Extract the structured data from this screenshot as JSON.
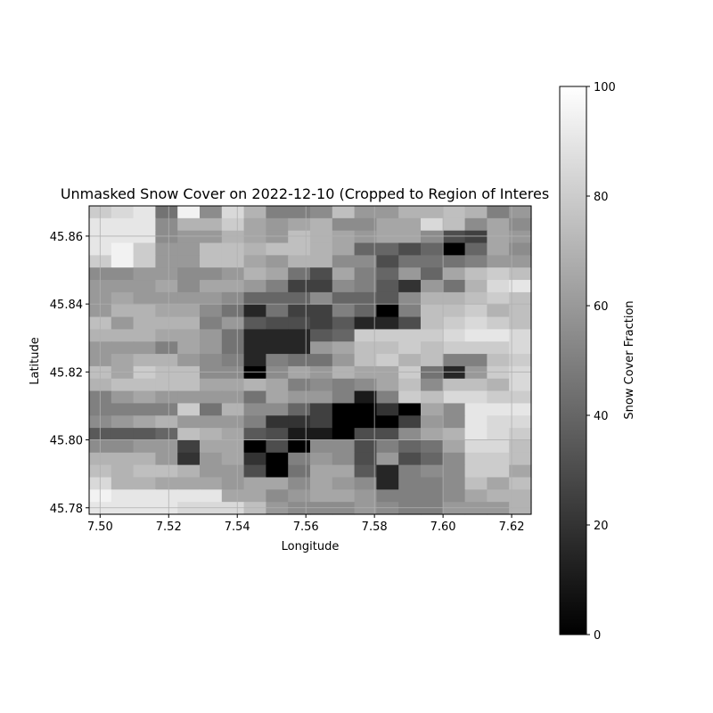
{
  "chart_data": {
    "type": "heatmap",
    "title": "Unmasked Snow Cover on 2022-12-10 (Cropped to Region of Interes",
    "xlabel": "Longitude",
    "ylabel": "Latitude",
    "colorbar_label": "Snow Cover Fraction",
    "colormap": "gray",
    "color_low": "#000000",
    "color_high": "#ffffff",
    "grid": true,
    "xlim": [
      7.4968,
      7.6257
    ],
    "ylim": [
      45.7781,
      45.8689
    ],
    "x_ticks": [
      7.5,
      7.52,
      7.54,
      7.56,
      7.58,
      7.6,
      7.62
    ],
    "x_tick_labels": [
      "7.50",
      "7.52",
      "7.54",
      "7.56",
      "7.58",
      "7.60",
      "7.62"
    ],
    "y_ticks": [
      45.78,
      45.8,
      45.82,
      45.84,
      45.86
    ],
    "y_tick_labels": [
      "45.78",
      "45.80",
      "45.82",
      "45.84",
      "45.86"
    ],
    "colorbar_range": [
      0,
      100
    ],
    "colorbar_ticks": [
      0,
      20,
      40,
      60,
      80,
      100
    ],
    "colorbar_tick_labels": [
      "0",
      "20",
      "40",
      "60",
      "80",
      "100"
    ],
    "rows_top_to_bottom": [
      [
        80,
        85,
        90,
        45,
        95,
        55,
        85,
        70,
        50,
        50,
        55,
        75,
        60,
        60,
        70,
        70,
        75,
        70,
        50,
        60
      ],
      [
        90,
        90,
        90,
        55,
        70,
        70,
        80,
        65,
        60,
        65,
        70,
        55,
        55,
        65,
        65,
        85,
        75,
        55,
        65,
        55
      ],
      [
        90,
        90,
        90,
        55,
        60,
        60,
        70,
        65,
        60,
        75,
        70,
        65,
        60,
        65,
        65,
        55,
        30,
        25,
        65,
        60
      ],
      [
        90,
        95,
        80,
        60,
        60,
        75,
        75,
        70,
        75,
        75,
        70,
        65,
        40,
        40,
        30,
        40,
        0,
        40,
        65,
        55
      ],
      [
        80,
        95,
        80,
        60,
        60,
        75,
        75,
        65,
        60,
        70,
        70,
        55,
        55,
        30,
        45,
        45,
        45,
        50,
        60,
        60
      ],
      [
        55,
        55,
        60,
        60,
        55,
        55,
        60,
        70,
        65,
        45,
        30,
        65,
        50,
        40,
        60,
        40,
        65,
        75,
        80,
        75
      ],
      [
        60,
        60,
        60,
        65,
        55,
        65,
        65,
        60,
        50,
        25,
        25,
        55,
        50,
        35,
        20,
        60,
        45,
        70,
        85,
        90
      ],
      [
        60,
        65,
        60,
        60,
        60,
        60,
        55,
        40,
        40,
        40,
        55,
        40,
        40,
        35,
        55,
        70,
        70,
        75,
        80,
        75
      ],
      [
        60,
        70,
        70,
        65,
        65,
        55,
        45,
        15,
        45,
        25,
        25,
        50,
        40,
        0,
        50,
        75,
        75,
        80,
        70,
        75
      ],
      [
        75,
        60,
        70,
        70,
        70,
        50,
        60,
        35,
        30,
        30,
        25,
        35,
        15,
        15,
        30,
        75,
        80,
        85,
        80,
        75
      ],
      [
        70,
        70,
        70,
        65,
        65,
        60,
        45,
        15,
        15,
        15,
        35,
        40,
        80,
        80,
        80,
        80,
        85,
        90,
        90,
        85
      ],
      [
        60,
        60,
        60,
        50,
        65,
        60,
        45,
        15,
        15,
        15,
        60,
        65,
        75,
        75,
        80,
        75,
        80,
        80,
        80,
        85
      ],
      [
        60,
        65,
        70,
        70,
        60,
        55,
        50,
        15,
        50,
        45,
        45,
        60,
        75,
        80,
        70,
        75,
        50,
        50,
        75,
        80
      ],
      [
        75,
        65,
        80,
        75,
        75,
        55,
        55,
        0,
        55,
        65,
        60,
        70,
        65,
        65,
        80,
        45,
        15,
        60,
        80,
        85
      ],
      [
        70,
        75,
        75,
        75,
        75,
        65,
        65,
        70,
        65,
        50,
        55,
        50,
        55,
        65,
        75,
        55,
        75,
        75,
        70,
        85
      ],
      [
        50,
        60,
        65,
        60,
        60,
        60,
        60,
        45,
        65,
        60,
        60,
        50,
        10,
        50,
        80,
        75,
        85,
        85,
        80,
        80
      ],
      [
        50,
        50,
        50,
        50,
        80,
        45,
        70,
        55,
        55,
        40,
        25,
        0,
        0,
        20,
        0,
        65,
        55,
        90,
        90,
        90
      ],
      [
        55,
        60,
        65,
        70,
        60,
        60,
        60,
        50,
        20,
        20,
        25,
        0,
        0,
        0,
        25,
        60,
        55,
        90,
        85,
        85
      ],
      [
        35,
        35,
        35,
        40,
        75,
        70,
        65,
        35,
        30,
        10,
        10,
        0,
        30,
        30,
        55,
        65,
        70,
        90,
        85,
        80
      ],
      [
        55,
        55,
        60,
        60,
        25,
        65,
        65,
        0,
        30,
        0,
        55,
        55,
        30,
        50,
        40,
        45,
        65,
        85,
        85,
        75
      ],
      [
        70,
        70,
        70,
        60,
        20,
        60,
        65,
        20,
        0,
        50,
        60,
        55,
        30,
        60,
        30,
        40,
        55,
        80,
        80,
        75
      ],
      [
        75,
        70,
        75,
        75,
        70,
        60,
        60,
        30,
        0,
        45,
        65,
        65,
        35,
        15,
        50,
        55,
        55,
        80,
        80,
        65
      ],
      [
        85,
        70,
        70,
        65,
        65,
        65,
        60,
        65,
        65,
        55,
        65,
        60,
        55,
        15,
        50,
        50,
        55,
        75,
        65,
        75
      ],
      [
        95,
        90,
        90,
        90,
        90,
        90,
        65,
        65,
        55,
        60,
        65,
        65,
        60,
        50,
        50,
        50,
        55,
        65,
        70,
        70
      ],
      [
        90,
        90,
        90,
        90,
        85,
        85,
        85,
        75,
        60,
        55,
        55,
        55,
        60,
        55,
        50,
        50,
        60,
        60,
        60,
        70
      ]
    ]
  }
}
